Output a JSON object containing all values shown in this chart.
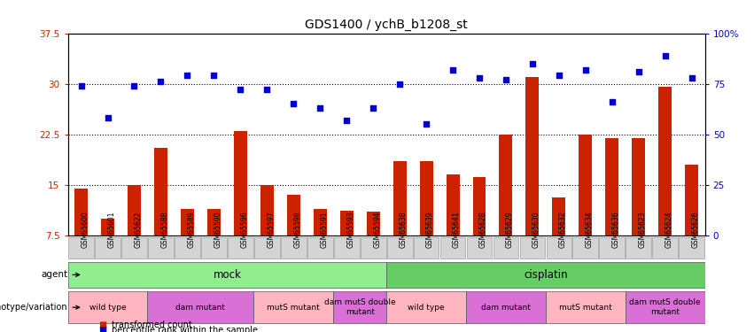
{
  "title": "GDS1400 / ychB_b1208_st",
  "samples": [
    "GSM65600",
    "GSM65601",
    "GSM65622",
    "GSM65588",
    "GSM65589",
    "GSM65590",
    "GSM65596",
    "GSM65597",
    "GSM65598",
    "GSM65591",
    "GSM65593",
    "GSM65594",
    "GSM65638",
    "GSM65639",
    "GSM65641",
    "GSM65628",
    "GSM65629",
    "GSM65630",
    "GSM65632",
    "GSM65634",
    "GSM65636",
    "GSM65623",
    "GSM65624",
    "GSM65626"
  ],
  "bar_values": [
    14.5,
    10.0,
    15.0,
    20.5,
    11.5,
    11.5,
    23.0,
    15.0,
    13.5,
    11.5,
    11.2,
    11.0,
    18.5,
    18.5,
    16.5,
    16.2,
    22.5,
    31.0,
    13.2,
    22.5,
    22.0,
    22.0,
    29.5,
    18.0
  ],
  "scatter_values": [
    74,
    58,
    74,
    76,
    79,
    79,
    72,
    72,
    65,
    63,
    57,
    63,
    75,
    55,
    82,
    78,
    77,
    85,
    79,
    82,
    66,
    81,
    89,
    78
  ],
  "bar_color": "#cc2200",
  "scatter_color": "#0000cc",
  "ylim_left": [
    7.5,
    37.5
  ],
  "ylim_right": [
    0,
    100
  ],
  "yticks_left": [
    7.5,
    15.0,
    22.5,
    30.0,
    37.5
  ],
  "yticks_right": [
    0,
    25,
    50,
    75,
    100
  ],
  "ytick_labels_left": [
    "7.5",
    "15",
    "22.5",
    "30",
    "37.5"
  ],
  "ytick_labels_right": [
    "0",
    "25",
    "50",
    "75",
    "100%"
  ],
  "hlines": [
    15.0,
    22.5,
    30.0
  ],
  "agent_groups": [
    {
      "label": "mock",
      "start": 0,
      "end": 12,
      "color": "#90ee90"
    },
    {
      "label": "cisplatin",
      "start": 12,
      "end": 24,
      "color": "#66cc66"
    }
  ],
  "genotype_groups": [
    {
      "label": "wild type",
      "start": 0,
      "end": 3,
      "color": "#ffb6c1"
    },
    {
      "label": "dam mutant",
      "start": 3,
      "end": 7,
      "color": "#da70d6"
    },
    {
      "label": "mutS mutant",
      "start": 7,
      "end": 10,
      "color": "#ffb6c1"
    },
    {
      "label": "dam mutS double\nmutant",
      "start": 10,
      "end": 12,
      "color": "#da70d6"
    },
    {
      "label": "wild type",
      "start": 12,
      "end": 15,
      "color": "#ffb6c1"
    },
    {
      "label": "dam mutant",
      "start": 15,
      "end": 18,
      "color": "#da70d6"
    },
    {
      "label": "mutS mutant",
      "start": 18,
      "end": 21,
      "color": "#ffb6c1"
    },
    {
      "label": "dam mutS double\nmutant",
      "start": 21,
      "end": 24,
      "color": "#da70d6"
    }
  ],
  "agent_label": "agent",
  "genotype_label": "genotype/variation",
  "legend_items": [
    "transformed count",
    "percentile rank within the sample"
  ],
  "background_color": "#ffffff"
}
